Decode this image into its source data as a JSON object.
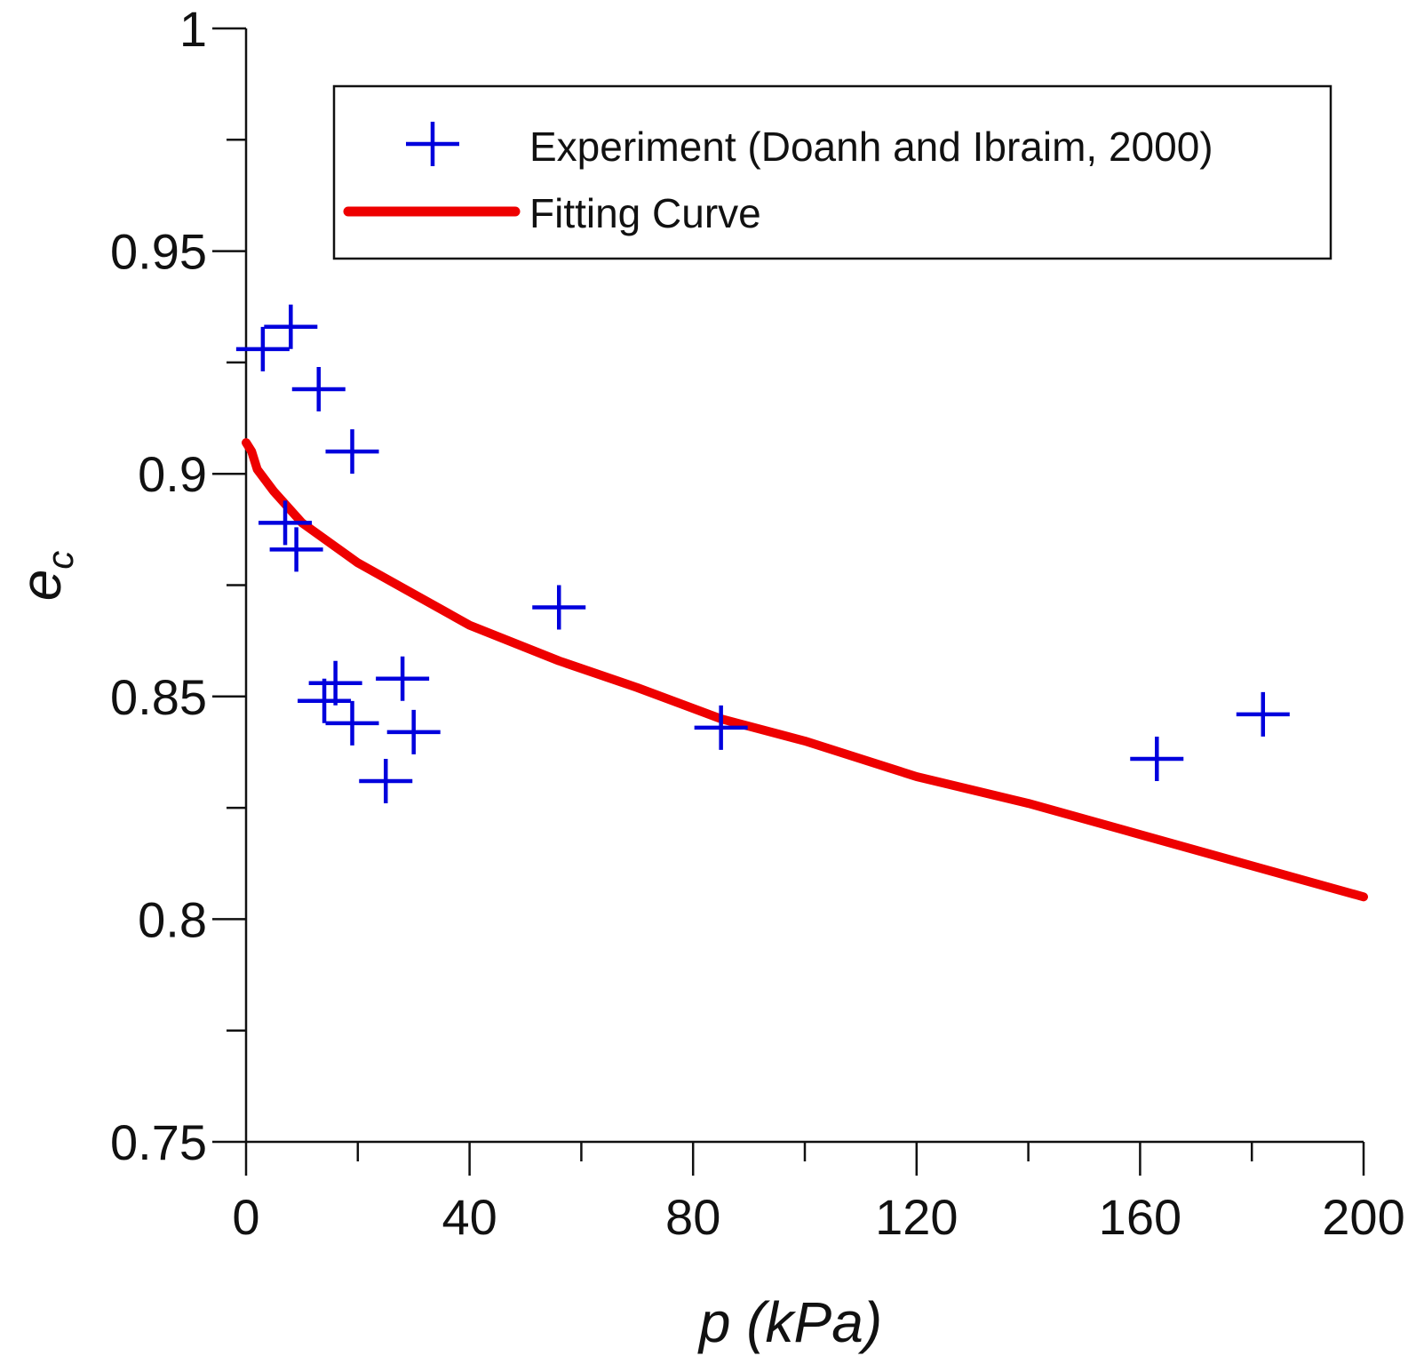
{
  "chart_data": {
    "type": "scatter",
    "title": "",
    "xlabel": "p (kPa)",
    "ylabel": "e",
    "ylabel_subscript": "c",
    "xlim": [
      0,
      200
    ],
    "ylim": [
      0.75,
      1.0
    ],
    "x_ticks": [
      0,
      40,
      80,
      120,
      160,
      200
    ],
    "x_tick_labels": [
      "0",
      "40",
      "80",
      "120",
      "160",
      "200"
    ],
    "x_minor_ticks": [
      20,
      60,
      100,
      140,
      180
    ],
    "y_ticks": [
      0.75,
      0.8,
      0.85,
      0.9,
      0.95,
      1.0
    ],
    "y_tick_labels": [
      "0.75",
      "0.8",
      "0.85",
      "0.9",
      "0.95",
      "1"
    ],
    "y_minor_ticks": [
      0.775,
      0.825,
      0.875,
      0.925,
      0.975
    ],
    "grid": false,
    "legend_position": "top-right",
    "series": [
      {
        "name": "Experiment (Doanh and Ibraim, 2000)",
        "kind": "scatter",
        "marker": "plus",
        "color": "#0000dd",
        "points": [
          [
            3,
            0.928
          ],
          [
            8,
            0.933
          ],
          [
            13,
            0.919
          ],
          [
            19,
            0.905
          ],
          [
            7,
            0.889
          ],
          [
            9,
            0.883
          ],
          [
            16,
            0.853
          ],
          [
            14,
            0.849
          ],
          [
            19,
            0.844
          ],
          [
            28,
            0.854
          ],
          [
            30,
            0.842
          ],
          [
            25,
            0.831
          ],
          [
            56,
            0.87
          ],
          [
            85,
            0.843
          ],
          [
            163,
            0.836
          ],
          [
            182,
            0.846
          ]
        ]
      },
      {
        "name": "Fitting Curve",
        "kind": "line",
        "color": "#ee0000",
        "points": [
          [
            0,
            0.907
          ],
          [
            1,
            0.905
          ],
          [
            2,
            0.901
          ],
          [
            5,
            0.896
          ],
          [
            10,
            0.889
          ],
          [
            20,
            0.88
          ],
          [
            30,
            0.873
          ],
          [
            40,
            0.866
          ],
          [
            56,
            0.858
          ],
          [
            70,
            0.852
          ],
          [
            85,
            0.845
          ],
          [
            100,
            0.84
          ],
          [
            120,
            0.832
          ],
          [
            140,
            0.826
          ],
          [
            160,
            0.819
          ],
          [
            180,
            0.812
          ],
          [
            200,
            0.805
          ]
        ]
      }
    ]
  }
}
